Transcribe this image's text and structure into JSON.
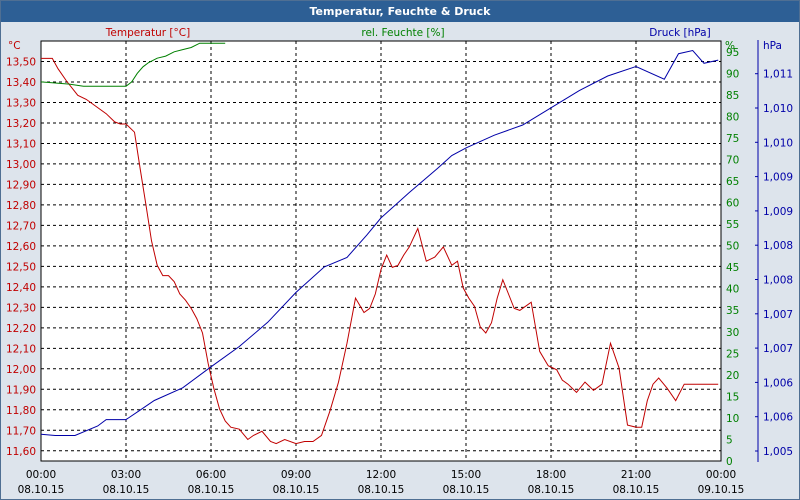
{
  "window": {
    "title": "Temperatur, Feuchte & Druck"
  },
  "colors": {
    "temperature": "#c00000",
    "humidity": "#008000",
    "pressure": "#0000a8",
    "grid": "#000000",
    "text": "#000000"
  },
  "chart_data": {
    "type": "line",
    "title": "Temperatur, Feuchte & Druck",
    "x_ticks": [
      {
        "time": "00:00",
        "date": "08.10.15"
      },
      {
        "time": "03:00",
        "date": "08.10.15"
      },
      {
        "time": "06:00",
        "date": "08.10.15"
      },
      {
        "time": "09:00",
        "date": "08.10.15"
      },
      {
        "time": "12:00",
        "date": "08.10.15"
      },
      {
        "time": "15:00",
        "date": "08.10.15"
      },
      {
        "time": "18:00",
        "date": "08.10.15"
      },
      {
        "time": "21:00",
        "date": "08.10.15"
      },
      {
        "time": "00:00",
        "date": "09.10.15"
      }
    ],
    "xlim_hours": [
      0,
      24
    ],
    "axes": {
      "temperature": {
        "label": "Temperatur [°C]",
        "unit": "°C",
        "ylim": [
          11.525,
          13.575
        ],
        "ticks": [
          "11,60",
          "11,70",
          "11,80",
          "11,90",
          "12,00",
          "12,10",
          "12,20",
          "12,30",
          "12,40",
          "12,50",
          "12,60",
          "12,70",
          "12,80",
          "12,90",
          "13,00",
          "13,10",
          "13,20",
          "13,30",
          "13,40",
          "13,50"
        ]
      },
      "humidity": {
        "label": "rel. Feuchte [%]",
        "unit": "%",
        "ylim": [
          0,
          97.5
        ],
        "ticks": [
          "0",
          "5",
          "10",
          "15",
          "20",
          "25",
          "30",
          "35",
          "40",
          "45",
          "50",
          "55",
          "60",
          "65",
          "70",
          "75",
          "80",
          "85",
          "90",
          "95"
        ]
      },
      "pressure": {
        "label": "Druck [hPa]",
        "unit": "hPa",
        "ylim": [
          1.0048,
          1.0114
        ],
        "ticks": [
          "1,005",
          "1,006",
          "1,006",
          "1,007",
          "1,007",
          "1,008",
          "1,008",
          "1,009",
          "1,009",
          "1,010",
          "1,010",
          "1,011"
        ]
      }
    },
    "series": [
      {
        "name": "Temperatur",
        "axis": "temperature",
        "x": [
          0,
          0.4,
          0.6,
          0.9,
          1.3,
          1.6,
          2.0,
          2.3,
          2.6,
          2.8,
          3.0,
          3.3,
          3.5,
          3.7,
          3.9,
          4.1,
          4.3,
          4.5,
          4.7,
          4.9,
          5.1,
          5.3,
          5.5,
          5.7,
          5.9,
          6.1,
          6.3,
          6.5,
          6.7,
          7.0,
          7.3,
          7.5,
          7.8,
          8.1,
          8.3,
          8.6,
          9.0,
          9.3,
          9.6,
          9.9,
          10.2,
          10.5,
          10.8,
          11.1,
          11.4,
          11.6,
          11.8,
          12.0,
          12.2,
          12.4,
          12.6,
          12.8,
          13.0,
          13.3,
          13.6,
          13.9,
          14.2,
          14.5,
          14.7,
          14.9,
          15.1,
          15.3,
          15.5,
          15.7,
          15.9,
          16.1,
          16.3,
          16.5,
          16.7,
          16.9,
          17.1,
          17.3,
          17.6,
          17.9,
          18.2,
          18.4,
          18.6,
          18.9,
          19.2,
          19.5,
          19.8,
          20.1,
          20.4,
          20.7,
          21.0,
          21.2,
          21.4,
          21.6,
          21.8,
          22.1,
          22.4,
          22.7,
          22.9,
          23.1,
          23.3,
          23.5,
          23.7,
          23.9
        ],
        "values": [
          13.49,
          13.49,
          13.44,
          13.38,
          13.31,
          13.29,
          13.25,
          13.22,
          13.18,
          13.17,
          13.17,
          13.13,
          12.95,
          12.78,
          12.6,
          12.48,
          12.43,
          12.43,
          12.4,
          12.34,
          12.31,
          12.27,
          12.22,
          12.15,
          12.0,
          11.88,
          11.78,
          11.72,
          11.69,
          11.68,
          11.63,
          11.65,
          11.67,
          11.62,
          11.61,
          11.63,
          11.61,
          11.62,
          11.62,
          11.65,
          11.77,
          11.91,
          12.1,
          12.32,
          12.25,
          12.27,
          12.34,
          12.46,
          12.53,
          12.47,
          12.48,
          12.53,
          12.57,
          12.66,
          12.5,
          12.52,
          12.57,
          12.48,
          12.5,
          12.37,
          12.32,
          12.28,
          12.18,
          12.15,
          12.2,
          12.32,
          12.41,
          12.34,
          12.27,
          12.26,
          12.28,
          12.3,
          12.06,
          11.99,
          11.97,
          11.92,
          11.9,
          11.86,
          11.91,
          11.87,
          11.9,
          12.1,
          11.98,
          11.7,
          11.69,
          11.69,
          11.82,
          11.9,
          11.93,
          11.88,
          11.82,
          11.9,
          11.9,
          11.9,
          11.9,
          11.9,
          11.9,
          11.9
        ]
      },
      {
        "name": "rel. Feuchte",
        "axis": "humidity",
        "x": [
          0,
          1.0,
          1.5,
          2.0,
          2.5,
          3.0,
          3.2,
          3.4,
          3.6,
          3.8,
          4.1,
          4.4,
          4.7,
          5.0,
          5.3,
          5.6,
          5.9,
          6.2,
          6.5
        ],
        "values": [
          88,
          87.5,
          87,
          87,
          87,
          87,
          88,
          90,
          91.5,
          92.5,
          93.5,
          94,
          95,
          95.5,
          96,
          97,
          97,
          97,
          97
        ]
      },
      {
        "name": "Druck",
        "axis": "pressure",
        "x": [
          0,
          0.5,
          1.2,
          2.0,
          2.3,
          3.0,
          3.5,
          4.0,
          5.0,
          6.0,
          7.0,
          8.0,
          9.0,
          10.0,
          10.8,
          11.5,
          12.0,
          13.0,
          14.0,
          14.5,
          15.0,
          16.0,
          17.0,
          18.0,
          19.0,
          20.0,
          21.0,
          22.0,
          22.5,
          23.0,
          23.4,
          23.9
        ],
        "values": [
          1.00522,
          1.0052,
          1.0052,
          1.00535,
          1.00545,
          1.00545,
          1.0056,
          1.00575,
          1.00595,
          1.00628,
          1.0066,
          1.00698,
          1.00745,
          1.00785,
          1.008,
          1.00835,
          1.00862,
          1.00902,
          1.0094,
          1.0096,
          1.00972,
          1.00992,
          1.01008,
          1.01035,
          1.01062,
          1.01085,
          1.011,
          1.0108,
          1.0112,
          1.01125,
          1.01105,
          1.0111
        ]
      }
    ]
  }
}
